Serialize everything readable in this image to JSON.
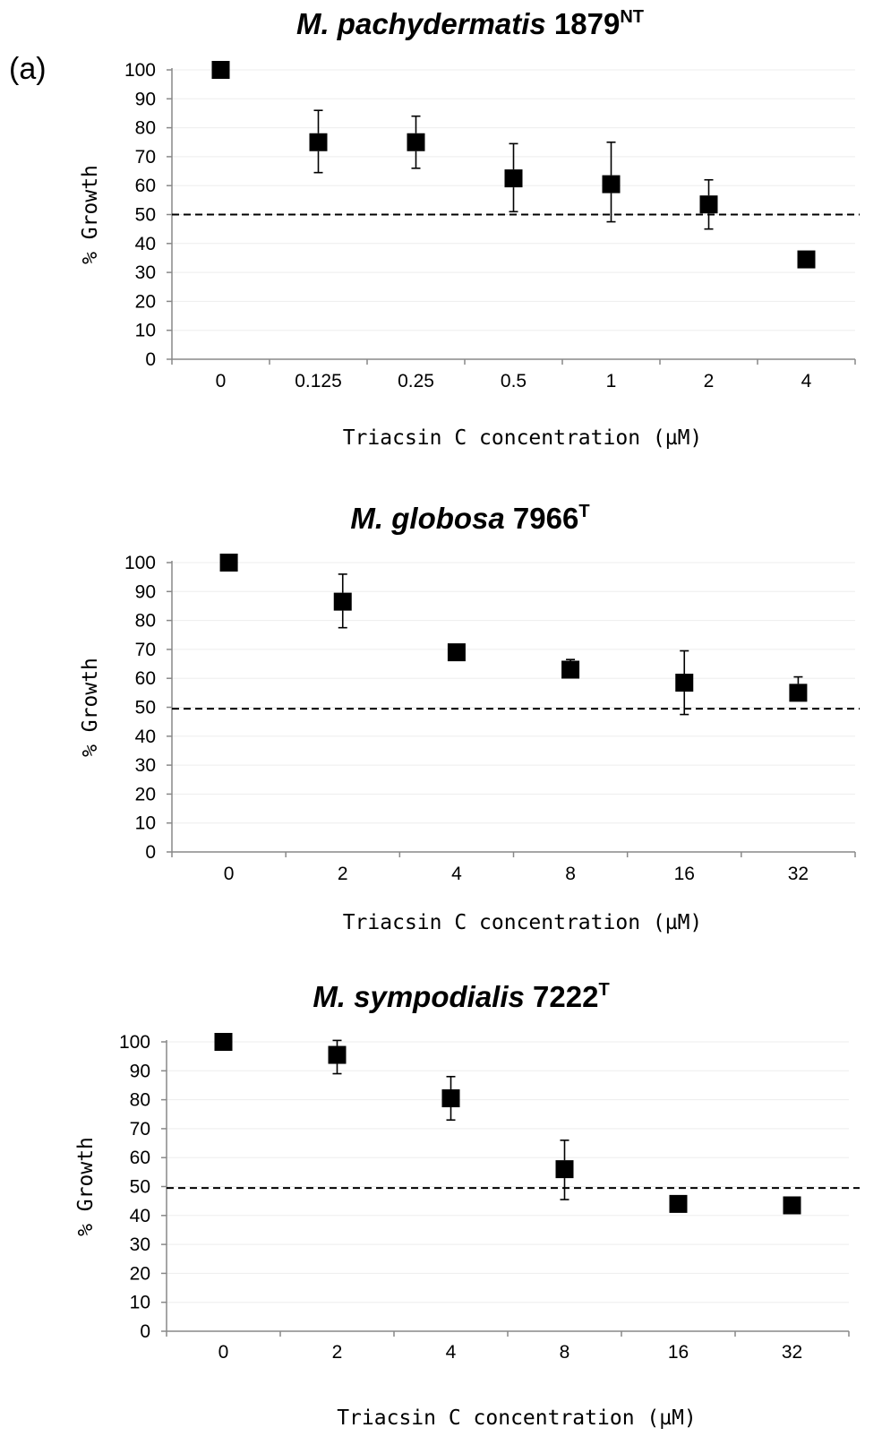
{
  "panel_label": "(a)",
  "chart_data": [
    {
      "type": "scatter",
      "title": {
        "species": "M. pachydermatis",
        "strain": " 1879",
        "superscript": "NT"
      },
      "xlabel": "Triacsin C concentration (µM)",
      "ylabel": "% Growth",
      "ylim": [
        0,
        100
      ],
      "yticks": [
        "0",
        "10",
        "20",
        "30",
        "40",
        "50",
        "60",
        "70",
        "80",
        "90",
        "100"
      ],
      "categories": [
        "0",
        "0.125",
        "0.25",
        "0.5",
        "1",
        "2",
        "4"
      ],
      "values": [
        100,
        75,
        75,
        62.5,
        60.5,
        53.5,
        34.5
      ],
      "error_upper": [
        null,
        86,
        84,
        74.5,
        75,
        62,
        null
      ],
      "error_lower": [
        null,
        64.5,
        66,
        51,
        47.5,
        45,
        null
      ],
      "reference_line": 50,
      "grid": true
    },
    {
      "type": "scatter",
      "title": {
        "species": "M. globosa",
        "strain": " 7966",
        "superscript": "T"
      },
      "xlabel": "Triacsin C concentration (µM)",
      "ylabel": "% Growth",
      "ylim": [
        0,
        100
      ],
      "yticks": [
        "0",
        "10",
        "20",
        "30",
        "40",
        "50",
        "60",
        "70",
        "80",
        "90",
        "100"
      ],
      "categories": [
        "0",
        "2",
        "4",
        "8",
        "16",
        "32"
      ],
      "values": [
        100,
        86.5,
        69,
        63,
        58.5,
        55
      ],
      "error_upper": [
        null,
        96,
        null,
        66.5,
        69.5,
        60.5
      ],
      "error_lower": [
        null,
        77.5,
        null,
        null,
        47.5,
        null
      ],
      "reference_line": 49.5,
      "grid": true
    },
    {
      "type": "scatter",
      "title": {
        "species": "M. sympodialis",
        "strain": " 7222",
        "superscript": "T"
      },
      "xlabel": "Triacsin C concentration (µM)",
      "ylabel": "% Growth",
      "ylim": [
        0,
        100
      ],
      "yticks": [
        "0",
        "10",
        "20",
        "30",
        "40",
        "50",
        "60",
        "70",
        "80",
        "90",
        "100"
      ],
      "categories": [
        "0",
        "2",
        "4",
        "8",
        "16",
        "32"
      ],
      "values": [
        100,
        95.5,
        80.5,
        56,
        44,
        43.5
      ],
      "error_upper": [
        null,
        100.5,
        88,
        66,
        null,
        null
      ],
      "error_lower": [
        null,
        89,
        73,
        45.5,
        null,
        null
      ],
      "reference_line": 49.5,
      "grid": true
    }
  ]
}
